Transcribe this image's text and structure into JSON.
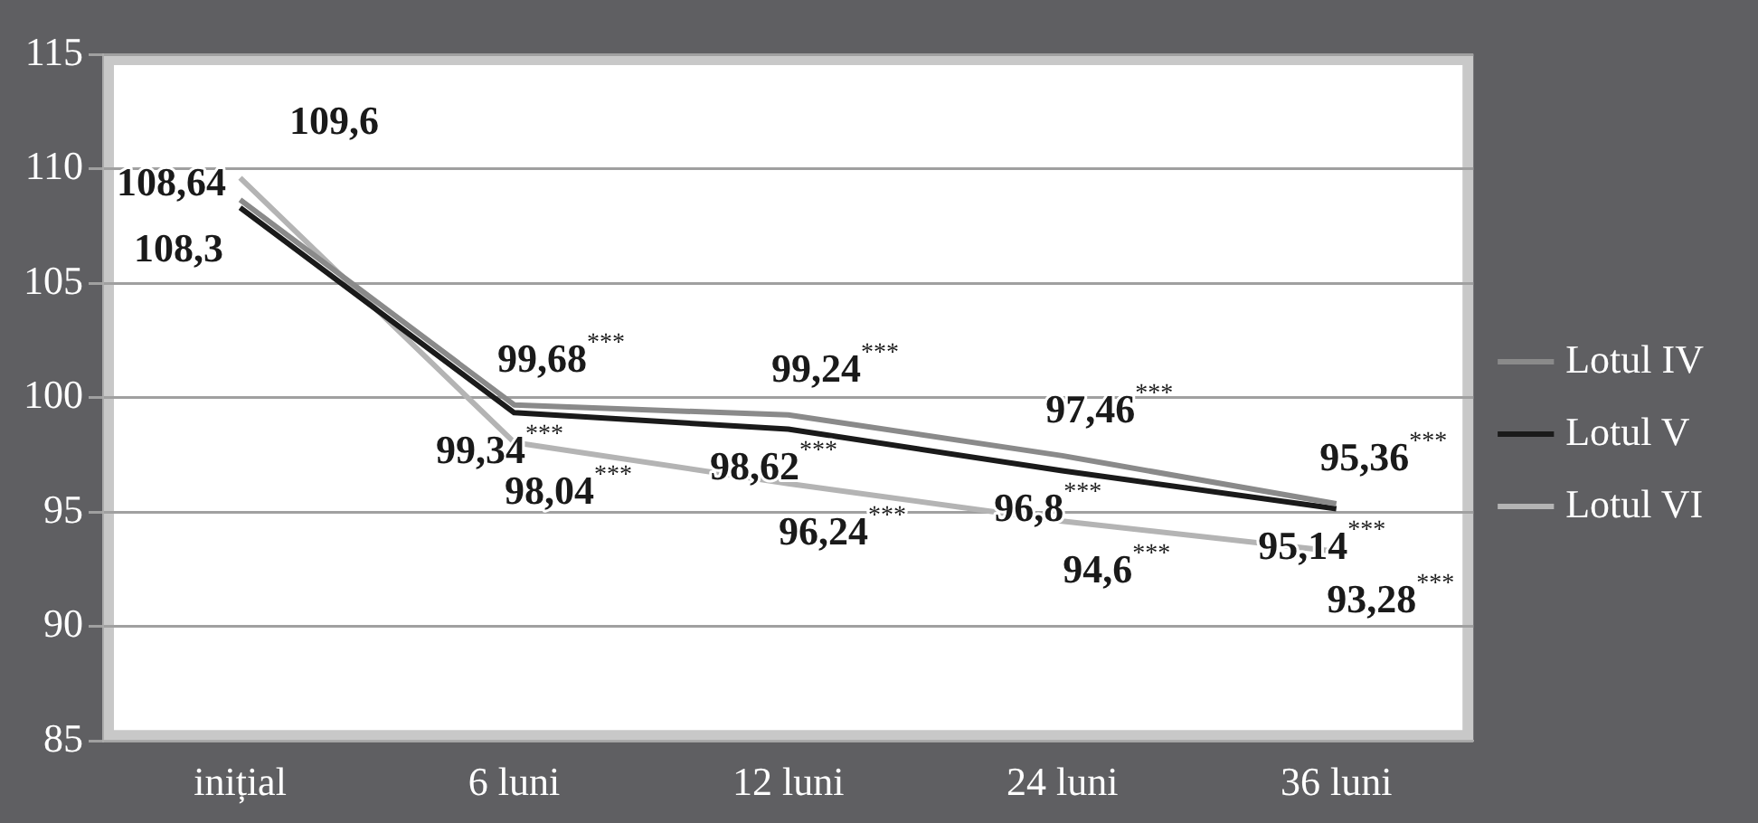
{
  "chart_data": {
    "type": "line",
    "categories": [
      "inițial",
      "6 luni",
      "12 luni",
      "24 luni",
      "36 luni"
    ],
    "series": [
      {
        "name": "Lotul IV",
        "color": "#8a8a8a",
        "values": [
          108.64,
          99.68,
          99.24,
          97.46,
          95.36
        ],
        "value_labels": [
          "108,64",
          "99,68$^{***}$",
          "99,24$^{***}$",
          "97,46$^{***}$",
          "95,36$^{***}$"
        ]
      },
      {
        "name": "Lotul V",
        "color": "#1a1a1a",
        "values": [
          108.3,
          99.34,
          98.62,
          96.8,
          95.14
        ],
        "value_labels": [
          "108,3",
          "99,34$^{***}$",
          "98,62$^{***}$",
          "96,8$^{***}$",
          "95,14$^{***}$"
        ]
      },
      {
        "name": "Lotul VI",
        "color": "#b4b4b4",
        "values": [
          109.6,
          98.04,
          96.24,
          94.6,
          93.28
        ],
        "value_labels": [
          "109,6",
          "98,04$^{***}$",
          "96,24$^{***}$",
          "94,6$^{***}$",
          "93,28$^{***}$"
        ]
      }
    ],
    "ylim": [
      85,
      115
    ],
    "yticks": [
      85,
      90,
      95,
      100,
      105,
      110,
      115
    ],
    "grid": "y",
    "legend": "right",
    "marker": "none",
    "line_style": "solid"
  }
}
